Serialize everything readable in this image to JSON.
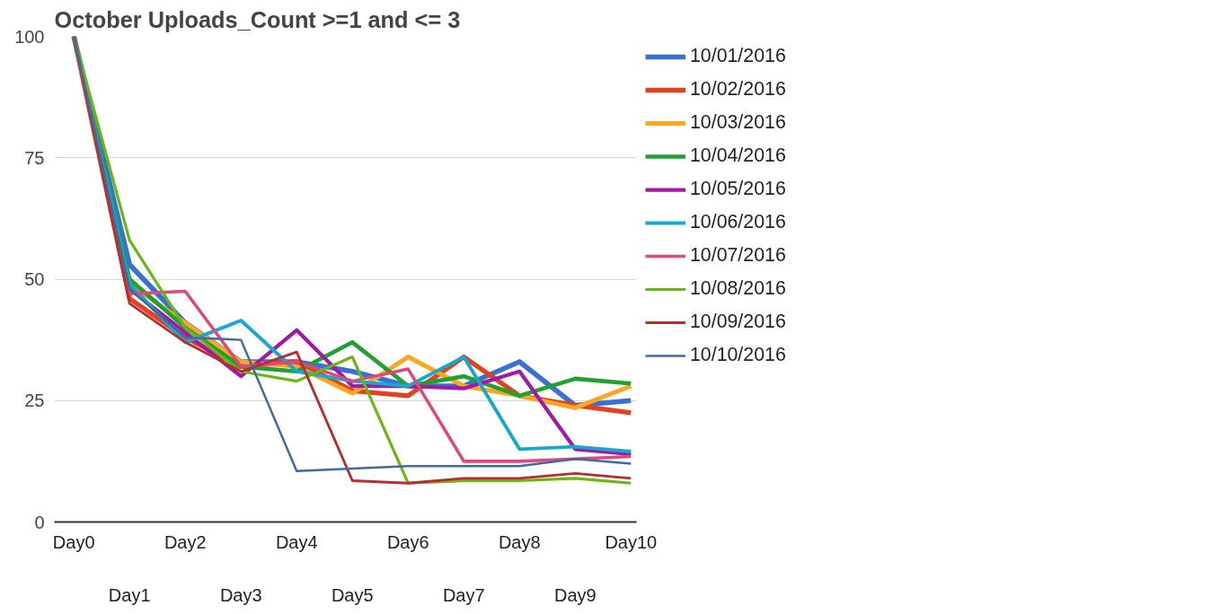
{
  "chart_data": {
    "type": "line",
    "title": "October Uploads_Count >=1 and <= 3",
    "categories": [
      "Day0",
      "Day1",
      "Day2",
      "Day3",
      "Day4",
      "Day5",
      "Day6",
      "Day7",
      "Day8",
      "Day9",
      "Day10"
    ],
    "series": [
      {
        "name": "10/01/2016",
        "color": "#3b6fd8",
        "values": [
          100,
          53,
          41,
          33,
          33,
          31,
          28,
          28,
          33,
          24,
          25
        ]
      },
      {
        "name": "10/02/2016",
        "color": "#e2431e",
        "values": [
          100,
          46,
          38,
          32,
          33,
          27,
          26,
          34,
          26,
          24,
          22.5
        ]
      },
      {
        "name": "10/03/2016",
        "color": "#ffa51f",
        "values": [
          100,
          49,
          41,
          33,
          32,
          26.5,
          34,
          28,
          26,
          23.5,
          28
        ]
      },
      {
        "name": "10/04/2016",
        "color": "#1fa12e",
        "values": [
          100,
          50,
          40,
          32,
          31,
          37,
          28,
          30,
          26,
          29.5,
          28.5
        ]
      },
      {
        "name": "10/05/2016",
        "color": "#a01aa6",
        "values": [
          100,
          48,
          39,
          30,
          39.5,
          28,
          28,
          27.5,
          31,
          15,
          14
        ]
      },
      {
        "name": "10/06/2016",
        "color": "#16a9cf",
        "values": [
          100,
          49,
          37,
          41.5,
          31,
          29,
          28,
          34,
          15,
          15.5,
          14.5
        ]
      },
      {
        "name": "10/07/2016",
        "color": "#e0487d",
        "values": [
          100,
          47,
          47.5,
          32,
          33,
          29,
          31.5,
          12.5,
          12.5,
          13,
          13.5
        ]
      },
      {
        "name": "10/08/2016",
        "color": "#6ab614",
        "values": [
          100,
          58,
          40,
          31,
          29,
          34,
          8,
          8.5,
          8.5,
          9,
          8
        ]
      },
      {
        "name": "10/09/2016",
        "color": "#b92d2d",
        "values": [
          100,
          45,
          37,
          31,
          35,
          8.5,
          8,
          9,
          9,
          10,
          9
        ]
      },
      {
        "name": "10/10/2016",
        "color": "#3d6aa0",
        "values": [
          100,
          48,
          38,
          37.5,
          10.5,
          11,
          11.5,
          11.5,
          11.5,
          13,
          12
        ]
      }
    ],
    "ylim": [
      0,
      100
    ],
    "yticks": [
      0,
      25,
      50,
      75,
      100
    ],
    "grid": "y",
    "legend": "right",
    "marker": "none",
    "line_style": "solid"
  }
}
